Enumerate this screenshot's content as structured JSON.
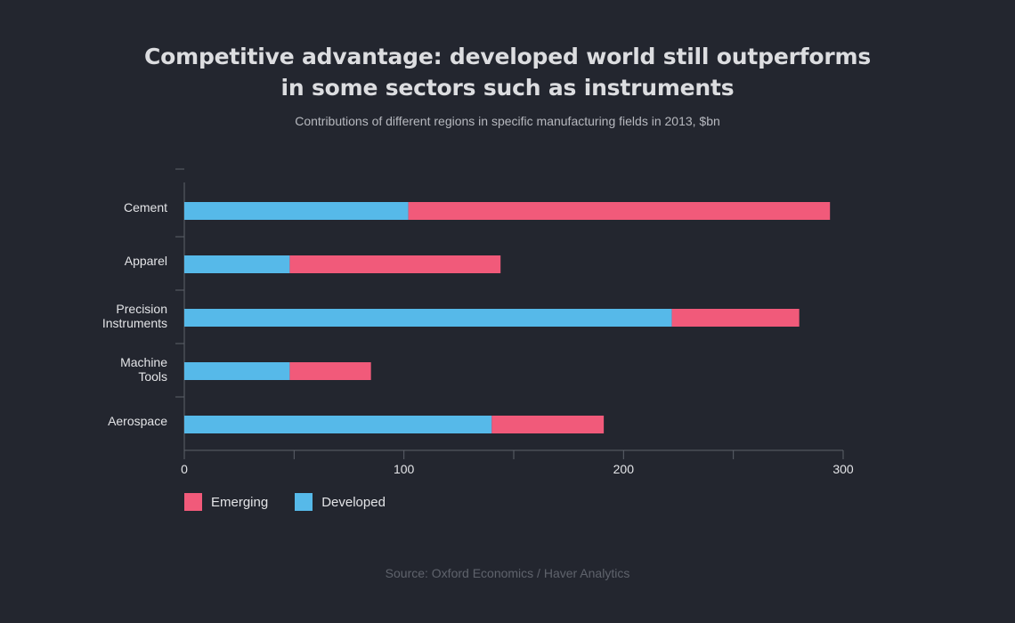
{
  "header": {
    "title_line1": "Competitive advantage: developed world still outperforms",
    "title_line2": "in some sectors such as instruments",
    "subtitle": "Contributions of different regions in specific manufacturing fields in 2013, $bn"
  },
  "footer": {
    "source": "Source: Oxford Economics / Haver Analytics"
  },
  "colors": {
    "emerging": "#f15a7a",
    "developed": "#56b9e9",
    "axis": "#5d616a",
    "background": "#23262f"
  },
  "chart_data": {
    "type": "bar",
    "orientation": "horizontal",
    "stacked": true,
    "title": "Competitive advantage: developed world still outperforms in some sectors such as instruments",
    "subtitle": "Contributions of different regions in specific manufacturing fields in 2013, $bn",
    "categories": [
      [
        "Cement"
      ],
      [
        "Apparel"
      ],
      [
        "Precision",
        "Instruments"
      ],
      [
        "Machine",
        "Tools"
      ],
      [
        "Aerospace"
      ]
    ],
    "series": [
      {
        "name": "Developed",
        "color": "#56b9e9",
        "values": [
          102,
          48,
          222,
          48,
          140
        ]
      },
      {
        "name": "Emerging",
        "color": "#f15a7a",
        "values": [
          192,
          96,
          58,
          37,
          51
        ]
      }
    ],
    "legend": [
      "Emerging",
      "Developed"
    ],
    "xlim": [
      0,
      300
    ],
    "x_ticks": [
      0,
      100,
      200,
      300
    ],
    "x_minor_ticks": [
      50,
      150,
      250
    ],
    "grid": false,
    "legend_position": "bottom-left"
  }
}
